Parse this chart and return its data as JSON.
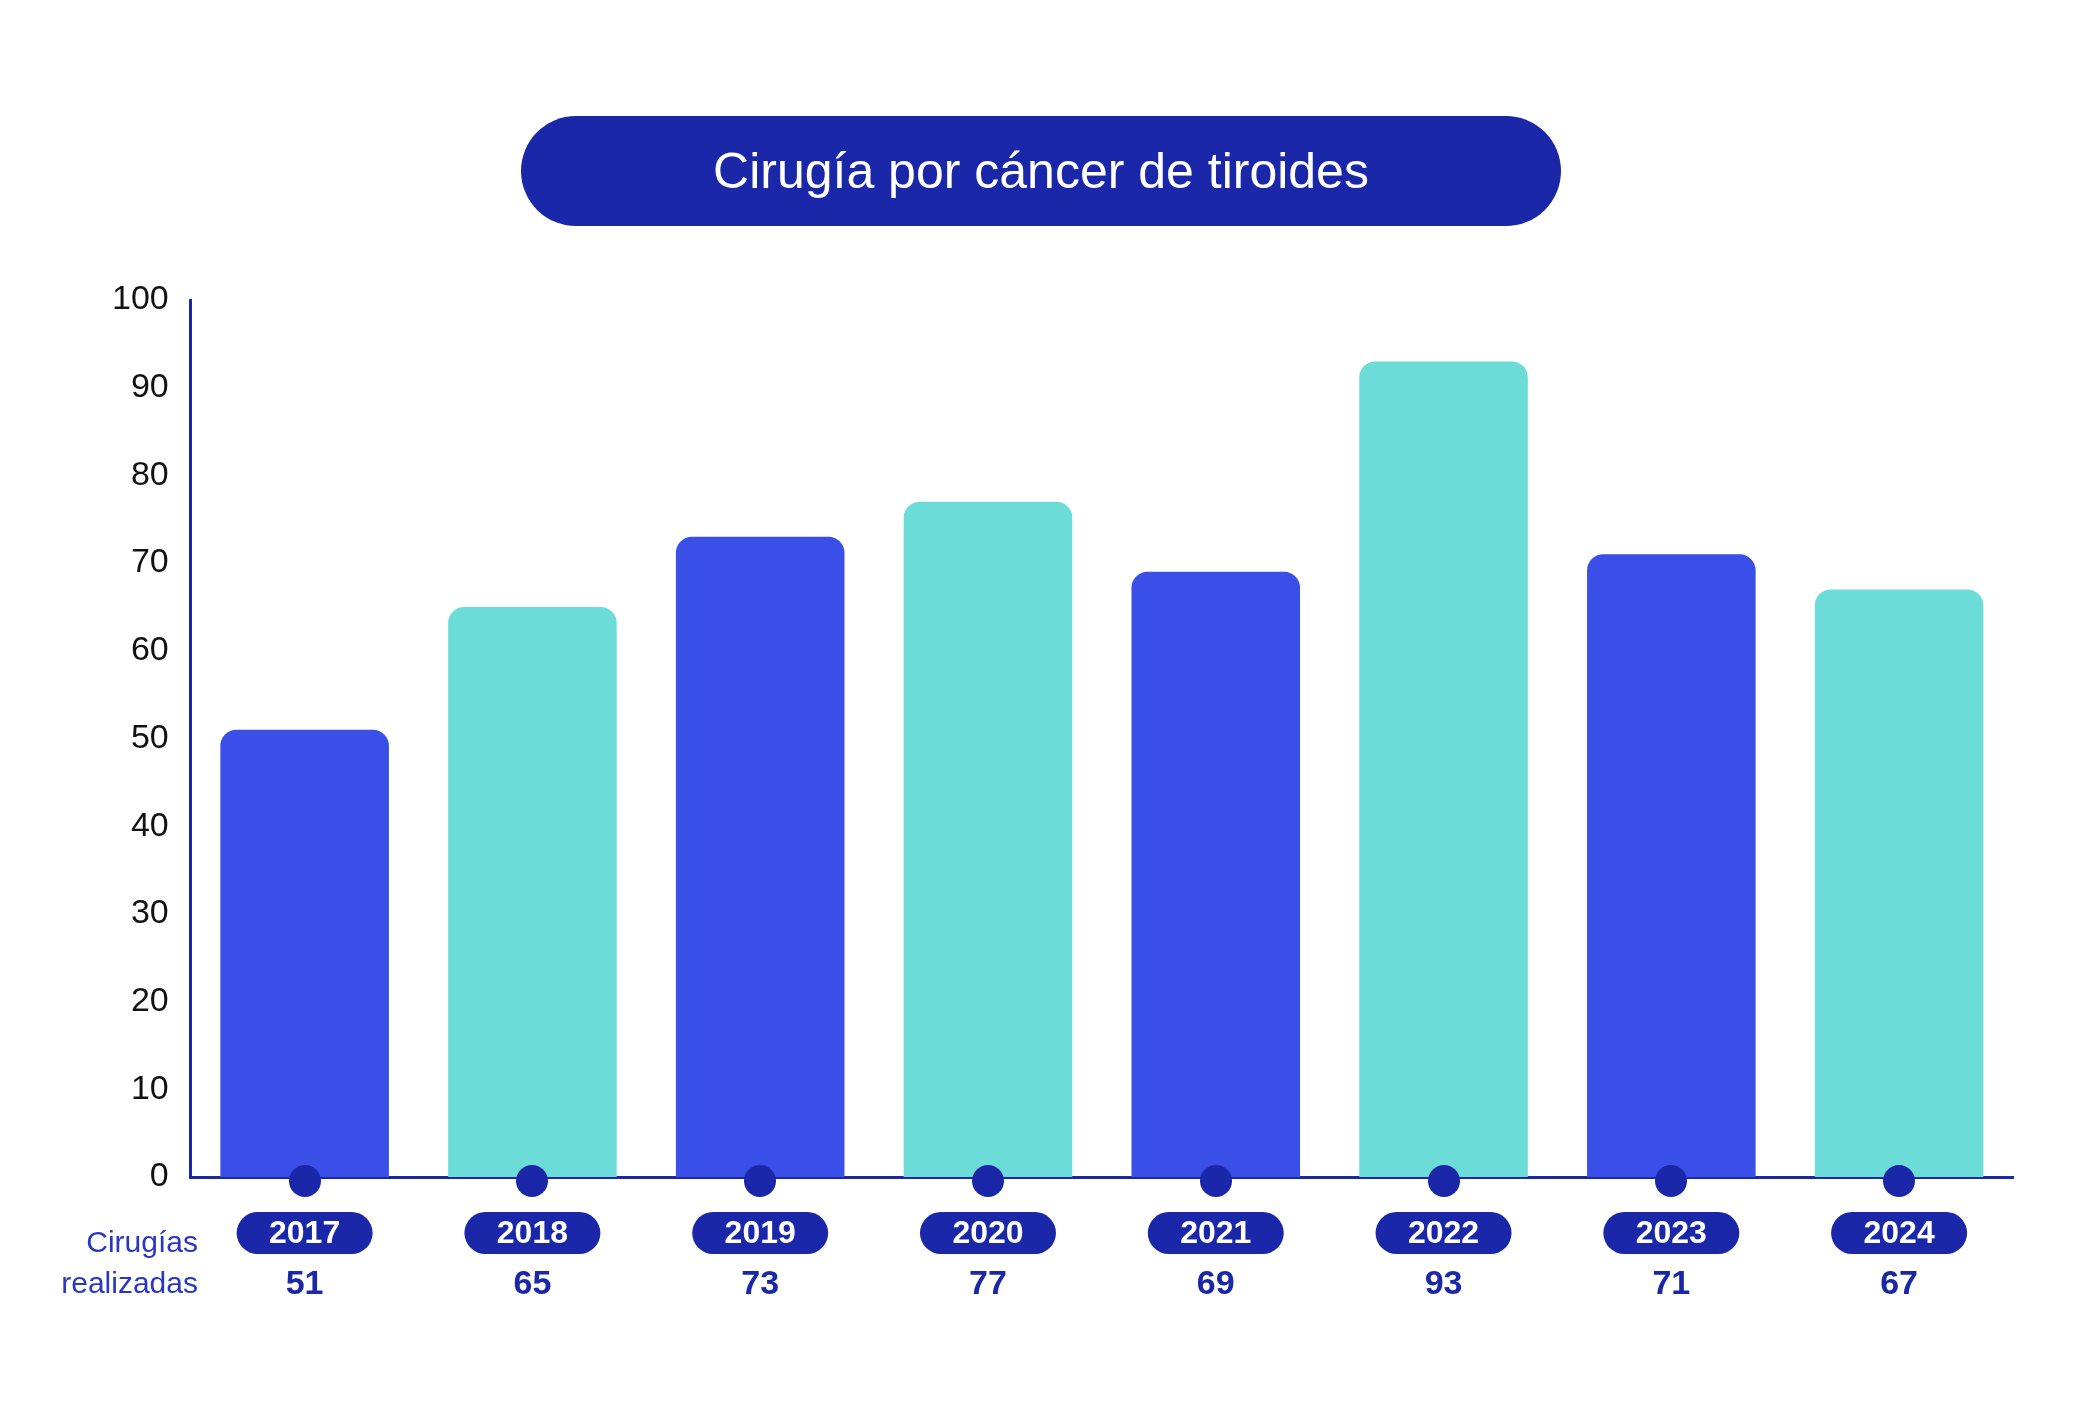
{
  "chart_data": {
    "type": "bar",
    "title": "Cirugía por cáncer de tiroides",
    "categories": [
      "2017",
      "2018",
      "2019",
      "2020",
      "2021",
      "2022",
      "2023",
      "2024"
    ],
    "values": [
      51,
      65,
      73,
      77,
      69,
      93,
      71,
      67
    ],
    "colors": [
      "#3a4ee8",
      "#6bdcd8",
      "#3a4ee8",
      "#6bdcd8",
      "#3a4ee8",
      "#6bdcd8",
      "#3a4ee8",
      "#6bdcd8"
    ],
    "ylim": [
      0,
      100
    ],
    "yticks": [
      0,
      10,
      20,
      30,
      40,
      50,
      60,
      70,
      80,
      90,
      100
    ],
    "grid": false,
    "legend": false,
    "data_labels": true,
    "annotations": [
      "Cirugías realizadas"
    ]
  }
}
